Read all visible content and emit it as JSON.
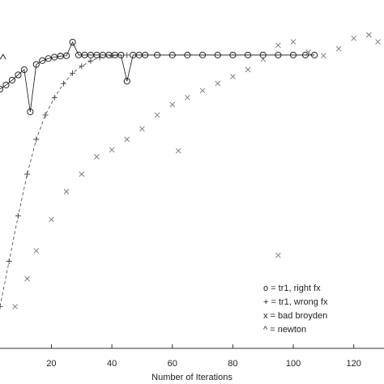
{
  "chart_data": {
    "type": "scatter",
    "x_label": "Number of Iterations",
    "xlim": [
      3,
      130
    ],
    "ylim": [
      0,
      100
    ],
    "xticks": [
      20,
      40,
      60,
      80,
      100,
      120
    ],
    "series": [
      {
        "name": "o = tr1, right fx",
        "marker": "o",
        "color": "#111111",
        "linestyle": "solid",
        "x": [
          3,
          5,
          7,
          9,
          11,
          13,
          15,
          17,
          19,
          21,
          23,
          25,
          27,
          29,
          31,
          33,
          35,
          37,
          39,
          41,
          43,
          45,
          47,
          49,
          51,
          55,
          60,
          65,
          70,
          75,
          80,
          85,
          90,
          95,
          100,
          104,
          107
        ],
        "values": [
          74.4,
          75.6,
          77,
          78.5,
          80,
          67.9,
          81.5,
          82.6,
          83.2,
          83.6,
          83.9,
          84,
          87.9,
          84.2,
          84.2,
          84.2,
          84.2,
          84.2,
          84.2,
          84.2,
          84.2,
          76.7,
          84.2,
          84.2,
          84.2,
          84.2,
          84.2,
          84.2,
          84.2,
          84.2,
          84.2,
          84.2,
          84.2,
          84.2,
          84.2,
          84.2,
          84.2
        ]
      },
      {
        "name": "+ = tr1, wrong fx",
        "marker": "+",
        "color": "#444444",
        "linestyle": "dashed",
        "x": [
          3,
          6,
          9,
          12,
          15,
          18,
          21,
          24,
          27,
          30,
          33,
          36,
          40,
          45
        ],
        "values": [
          12,
          25,
          38,
          50,
          60,
          67,
          72,
          76,
          79,
          81,
          82.5,
          83.5,
          84,
          84.2
        ]
      },
      {
        "name": "x = bad broyden",
        "marker": "x",
        "color": "#777777",
        "linestyle": "none",
        "x": [
          8,
          12,
          15,
          20,
          25,
          30,
          35,
          40,
          45,
          50,
          55,
          60,
          62,
          65,
          70,
          75,
          80,
          85,
          90,
          95,
          95,
          100,
          105,
          110,
          115,
          120,
          125,
          128
        ],
        "values": [
          12,
          20,
          28,
          37,
          45,
          50,
          55,
          57,
          60,
          63,
          67,
          70,
          56.7,
          72,
          74,
          76,
          78,
          80,
          83,
          26.7,
          87,
          88,
          85,
          84,
          86,
          89,
          90,
          88
        ]
      },
      {
        "name": "^ = newton",
        "marker": "^",
        "color": "#111111",
        "linestyle": "none",
        "x": [
          4
        ],
        "values": [
          83.7
        ]
      }
    ]
  }
}
